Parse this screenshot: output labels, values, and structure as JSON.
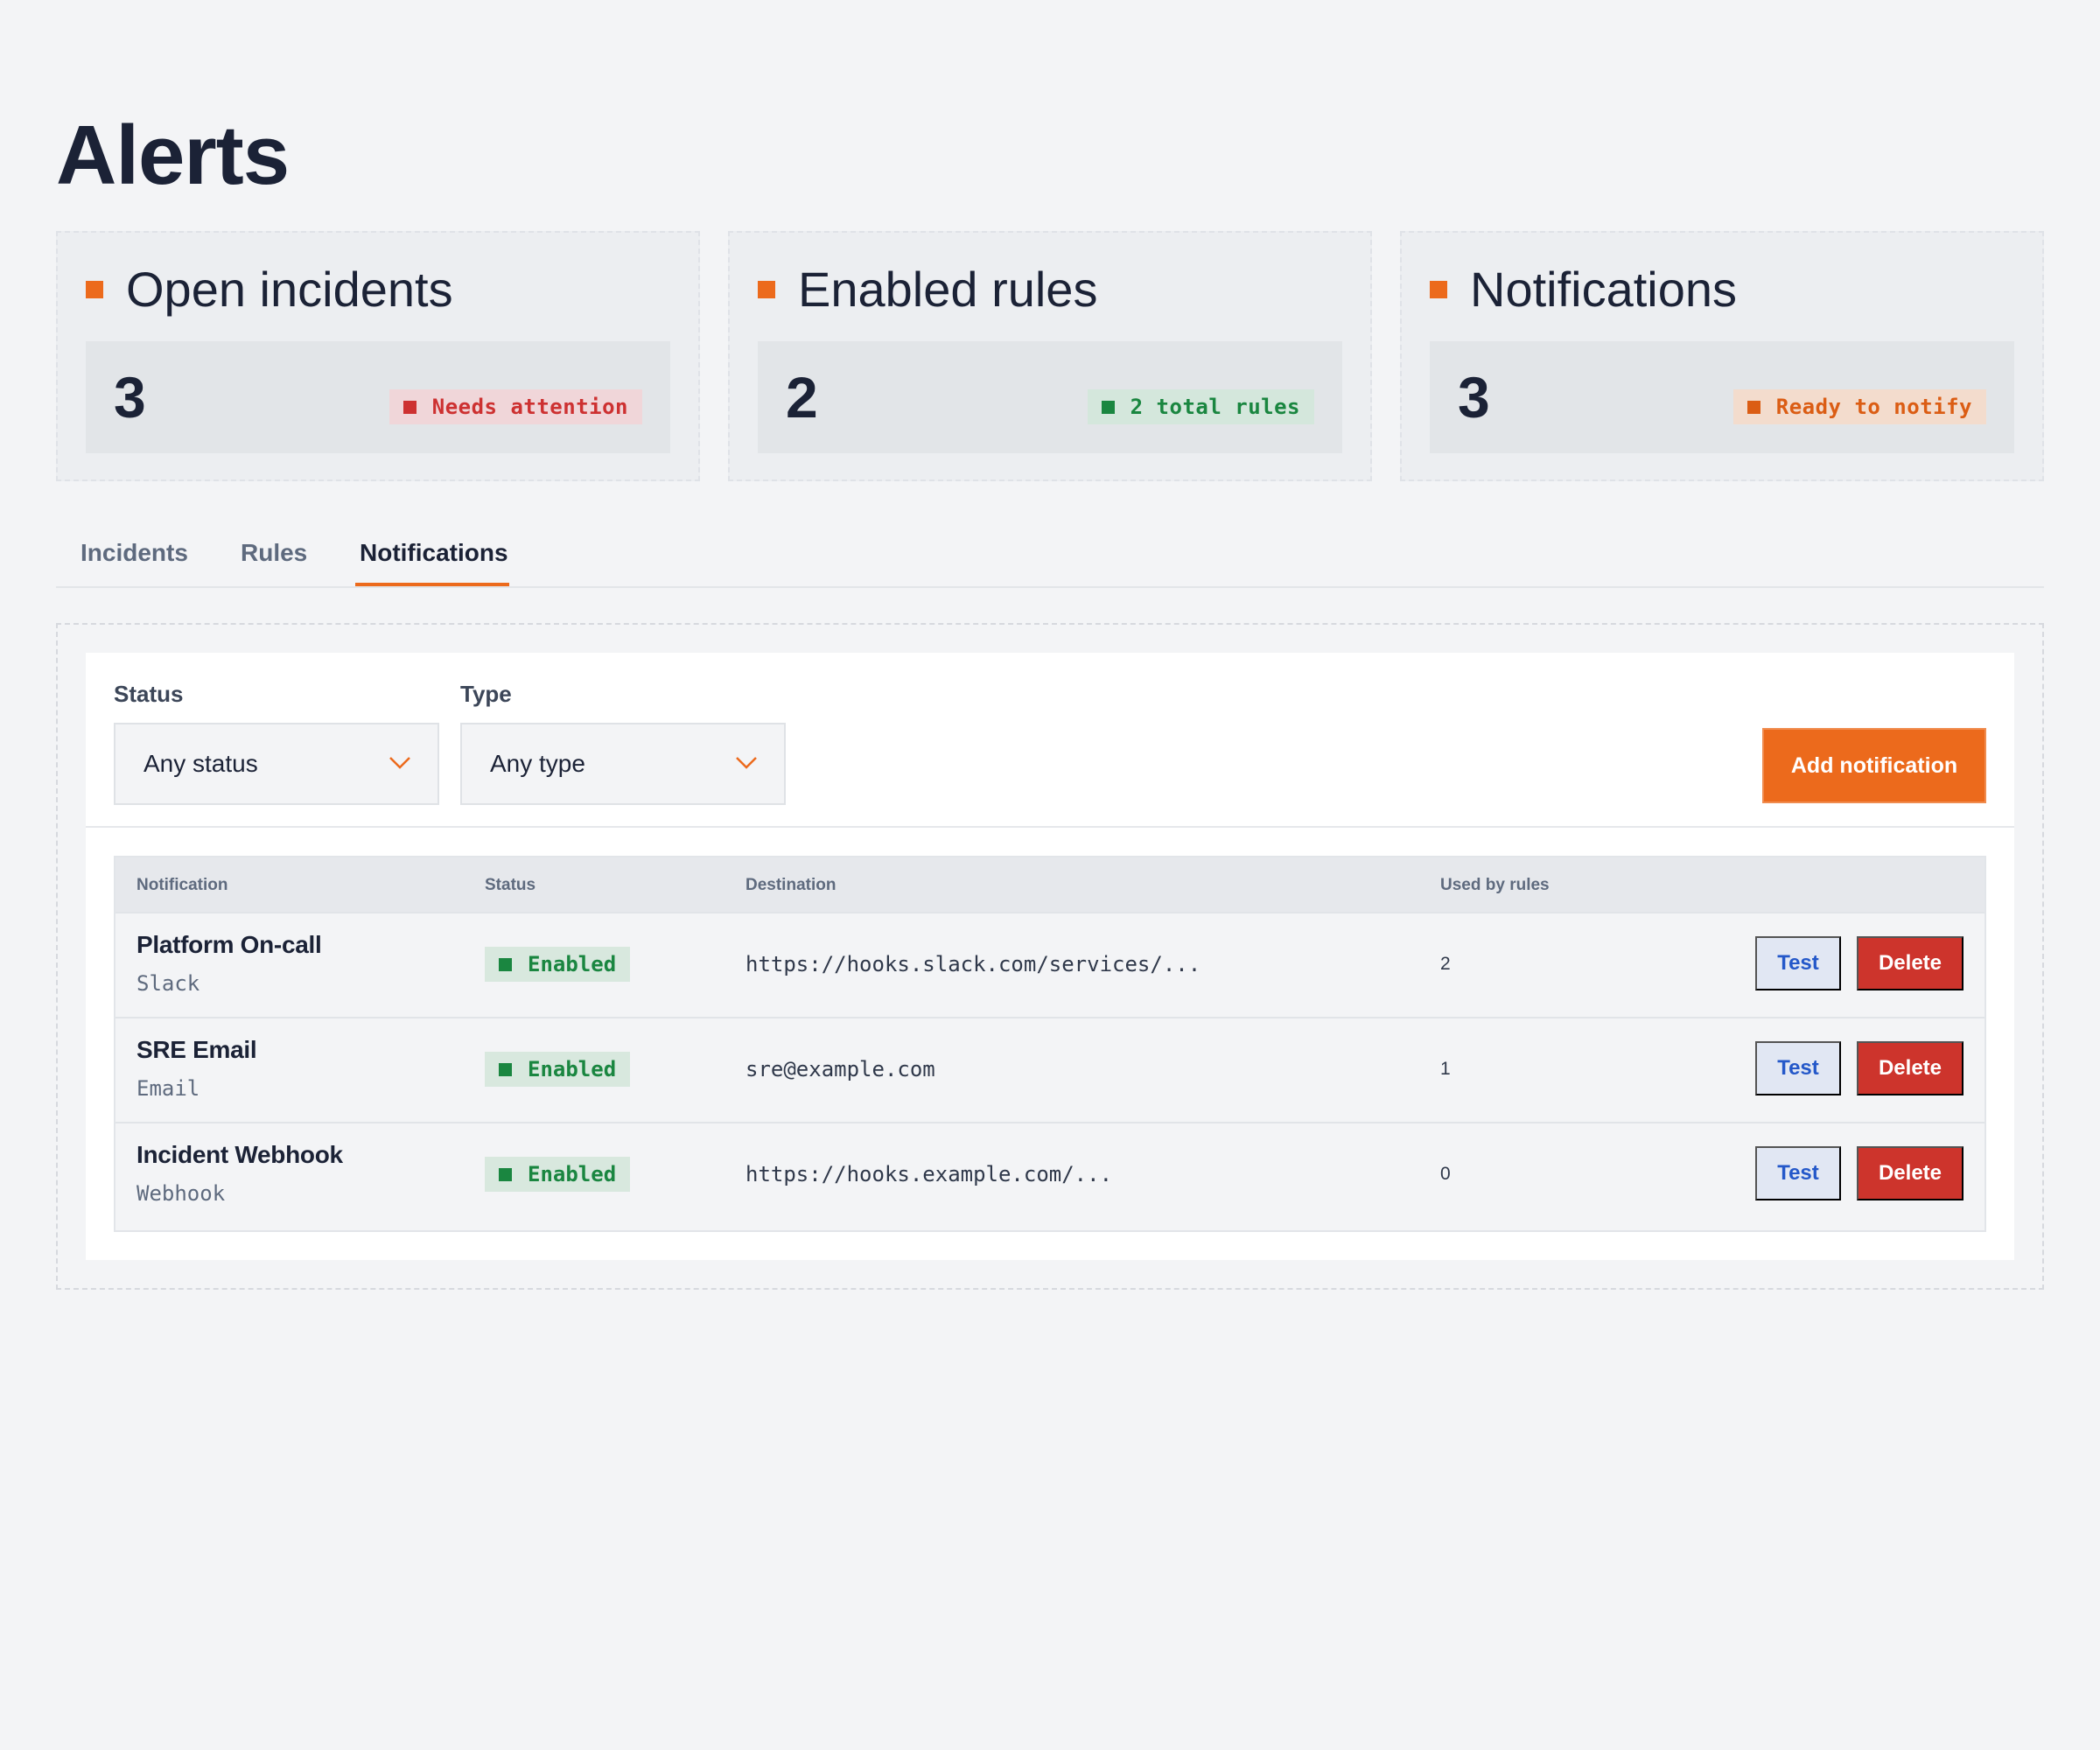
{
  "page": {
    "title": "Alerts"
  },
  "colors": {
    "accent": "#ec6a1c",
    "danger": "#cd342c",
    "success": "#1a8640",
    "link": "#2458c9"
  },
  "cards": [
    {
      "title": "Open incidents",
      "value": "3",
      "badge": "Needs attention"
    },
    {
      "title": "Enabled rules",
      "value": "2",
      "badge": "2 total rules"
    },
    {
      "title": "Notifications",
      "value": "3",
      "badge": "Ready to notify"
    }
  ],
  "tabs": [
    {
      "label": "Incidents",
      "active": false
    },
    {
      "label": "Rules",
      "active": false
    },
    {
      "label": "Notifications",
      "active": true
    }
  ],
  "filters": {
    "status": {
      "label": "Status",
      "value": "Any status"
    },
    "type": {
      "label": "Type",
      "value": "Any type"
    },
    "add_button": "Add notification"
  },
  "table": {
    "columns": [
      "Notification",
      "Status",
      "Destination",
      "Used by rules"
    ],
    "rows": [
      {
        "name": "Platform On-call",
        "type": "Slack",
        "status": "Enabled",
        "destination": "https://hooks.slack.com/services/...",
        "used_by": "2",
        "test": "Test",
        "delete": "Delete"
      },
      {
        "name": "SRE Email",
        "type": "Email",
        "status": "Enabled",
        "destination": "sre@example.com",
        "used_by": "1",
        "test": "Test",
        "delete": "Delete"
      },
      {
        "name": "Incident Webhook",
        "type": "Webhook",
        "status": "Enabled",
        "destination": "https://hooks.example.com/...",
        "used_by": "0",
        "test": "Test",
        "delete": "Delete"
      }
    ]
  }
}
